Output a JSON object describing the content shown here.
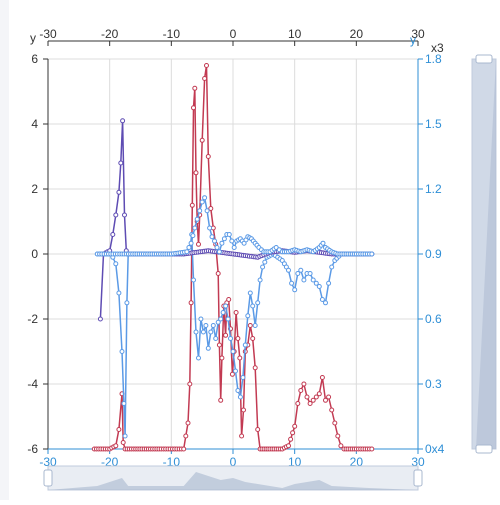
{
  "chart_data": {
    "type": "line",
    "x_range": [
      -30,
      30
    ],
    "x_ticks": [
      "-30",
      "-20",
      "-10",
      "0",
      "10",
      "20",
      "30"
    ],
    "y_left": {
      "name": "y",
      "range": [
        -6,
        6
      ],
      "ticks": [
        "-6",
        "-4",
        "-2",
        "0",
        "2",
        "4",
        "6"
      ]
    },
    "y_right": {
      "name": "y",
      "unit_label": "x3",
      "range": [
        0,
        1.8
      ],
      "ticks": [
        "0x4",
        "0.3",
        "0.6",
        "0.9",
        "1.2",
        "1.5",
        "1.8"
      ]
    },
    "grid": true,
    "colors": {
      "red_series": "#c23a52",
      "blue_series": "#5b9ae6",
      "purple_series": "#5e4cb3",
      "axis_right": "#2f8fd6",
      "axis_left": "#333333",
      "grid": "#dcdcdc",
      "zoom_bar": "#c0cbdc",
      "zoom_fill": "#a9b8cf"
    },
    "series": [
      {
        "axis": "left",
        "color_key": "red_series",
        "points": [
          [
            -22.5,
            -6
          ],
          [
            -20,
            -6
          ],
          [
            -19,
            -5.9
          ],
          [
            -18.5,
            -5.4
          ],
          [
            -18,
            -4.3
          ],
          [
            -17.8,
            -5.8
          ],
          [
            -17.5,
            -6
          ],
          [
            -12,
            -6
          ],
          [
            -8,
            -6
          ],
          [
            -7.3,
            -5.2
          ],
          [
            -7,
            -4
          ],
          [
            -6.8,
            -1.5
          ],
          [
            -6.6,
            1.5
          ],
          [
            -6.4,
            4.5
          ],
          [
            -6.2,
            5.1
          ],
          [
            -6.0,
            2.5
          ],
          [
            -5.8,
            1.0
          ],
          [
            -5.6,
            0.3
          ],
          [
            -5.4,
            1.2
          ],
          [
            -5.0,
            3.5
          ],
          [
            -4.6,
            5.4
          ],
          [
            -4.3,
            5.8
          ],
          [
            -4.0,
            3.0
          ],
          [
            -3.6,
            1.4
          ],
          [
            -3.2,
            0.8
          ],
          [
            -2.8,
            0.3
          ],
          [
            -2.4,
            -0.6
          ],
          [
            -2.2,
            -2.8
          ],
          [
            -2.0,
            -4.5
          ],
          [
            -1.8,
            -3.2
          ],
          [
            -1.5,
            -1.6
          ],
          [
            -1.2,
            -2.5
          ],
          [
            -1.0,
            -1.5
          ],
          [
            -0.7,
            -1.4
          ],
          [
            -0.4,
            -2.3
          ],
          [
            -0.1,
            -3.7
          ],
          [
            0.2,
            -3.0
          ],
          [
            0.5,
            -1.8
          ],
          [
            0.8,
            -2.6
          ],
          [
            1.1,
            -3.2
          ],
          [
            1.4,
            -5.6
          ],
          [
            1.7,
            -4.8
          ],
          [
            2.0,
            -3.0
          ],
          [
            2.4,
            -2.8
          ],
          [
            2.8,
            -2.2
          ],
          [
            3.2,
            -2.6
          ],
          [
            3.6,
            -3.5
          ],
          [
            4.0,
            -5.4
          ],
          [
            4.4,
            -6
          ],
          [
            6,
            -6
          ],
          [
            8,
            -6
          ],
          [
            9,
            -5.9
          ],
          [
            10,
            -5.3
          ],
          [
            10.5,
            -4.6
          ],
          [
            11,
            -4.2
          ],
          [
            11.5,
            -4.0
          ],
          [
            12,
            -4.4
          ],
          [
            12.5,
            -4.6
          ],
          [
            13,
            -4.5
          ],
          [
            13.5,
            -4.4
          ],
          [
            14,
            -4.3
          ],
          [
            14.5,
            -3.8
          ],
          [
            15,
            -4.5
          ],
          [
            15.5,
            -4.4
          ],
          [
            16,
            -4.8
          ],
          [
            16.5,
            -5.2
          ],
          [
            17,
            -5.6
          ],
          [
            17.5,
            -5.9
          ],
          [
            18,
            -6
          ],
          [
            20,
            -6
          ],
          [
            22.5,
            -6
          ]
        ]
      },
      {
        "axis": "left",
        "color_key": "blue_series",
        "points": [
          [
            -22,
            0
          ],
          [
            -20,
            0
          ],
          [
            -19.5,
            -0.1
          ],
          [
            -19,
            -0.3
          ],
          [
            -18.5,
            -1.2
          ],
          [
            -18,
            -3.0
          ],
          [
            -17.7,
            -4.6
          ],
          [
            -17.5,
            -5.6
          ],
          [
            -17.2,
            -1.5
          ],
          [
            -17,
            0
          ],
          [
            -12,
            0
          ],
          [
            -8,
            0
          ],
          [
            -7,
            0.1
          ],
          [
            -6.7,
            0.6
          ],
          [
            -6.4,
            -0.8
          ],
          [
            -6.0,
            -2.4
          ],
          [
            -5.6,
            -3.2
          ],
          [
            -5.2,
            -2.0
          ],
          [
            -4.8,
            -2.4
          ],
          [
            -4.4,
            -2.2
          ],
          [
            -4.0,
            -2.9
          ],
          [
            -3.6,
            -2.4
          ],
          [
            -3.2,
            -2.2
          ],
          [
            -2.8,
            -2.6
          ],
          [
            -2.4,
            -2.1
          ],
          [
            -2.0,
            -2.0
          ],
          [
            -1.6,
            -1.8
          ],
          [
            -1.2,
            -1.6
          ],
          [
            -0.8,
            -2.0
          ],
          [
            -0.4,
            -2.6
          ],
          [
            0,
            -3.0
          ],
          [
            0.4,
            -3.6
          ],
          [
            0.8,
            -4.2
          ],
          [
            1.2,
            -4.4
          ],
          [
            1.6,
            -3.8
          ],
          [
            2.0,
            -2.8
          ],
          [
            2.4,
            -1.9
          ],
          [
            2.8,
            -1.2
          ],
          [
            3.2,
            -1.6
          ],
          [
            3.6,
            -2.2
          ],
          [
            4.0,
            -1.5
          ],
          [
            4.4,
            -0.8
          ],
          [
            4.8,
            -0.4
          ],
          [
            5.5,
            -0.1
          ],
          [
            6.5,
            0
          ],
          [
            8,
            -0.2
          ],
          [
            9,
            -0.5
          ],
          [
            9.5,
            -0.9
          ],
          [
            10,
            -1.1
          ],
          [
            10.5,
            -0.6
          ],
          [
            11,
            -0.5
          ],
          [
            11.5,
            -0.8
          ],
          [
            12,
            -0.6
          ],
          [
            12.5,
            -0.6
          ],
          [
            13,
            -0.8
          ],
          [
            13.5,
            -0.9
          ],
          [
            14,
            -1.0
          ],
          [
            14.5,
            -1.4
          ],
          [
            15,
            -1.5
          ],
          [
            15.5,
            -0.9
          ],
          [
            16,
            -0.4
          ],
          [
            16.5,
            -0.2
          ],
          [
            17.5,
            0
          ],
          [
            20,
            0
          ],
          [
            22.5,
            0
          ]
        ]
      },
      {
        "axis": "left",
        "color_key": "purple_series",
        "points": [
          [
            -21.5,
            -2.0
          ],
          [
            -21,
            0
          ],
          [
            -20,
            0.1
          ],
          [
            -19.5,
            0.6
          ],
          [
            -19,
            1.2
          ],
          [
            -18.5,
            1.9
          ],
          [
            -18.2,
            2.8
          ],
          [
            -17.9,
            4.1
          ],
          [
            -17.6,
            1.2
          ],
          [
            -17.3,
            0.1
          ],
          [
            -17,
            0
          ],
          [
            -12,
            0
          ],
          [
            -8,
            0
          ],
          [
            -6,
            0.05
          ],
          [
            -4,
            0.1
          ],
          [
            -2,
            0.05
          ],
          [
            0,
            0
          ],
          [
            2,
            -0.05
          ],
          [
            4,
            -0.1
          ],
          [
            6,
            0.05
          ],
          [
            8,
            0.1
          ],
          [
            10,
            0.05
          ],
          [
            12,
            0.1
          ],
          [
            14,
            0.05
          ],
          [
            16,
            0
          ],
          [
            18,
            0
          ],
          [
            22.5,
            0
          ]
        ]
      },
      {
        "axis": "right",
        "color_key": "blue_series",
        "points": [
          [
            -22,
            0.9
          ],
          [
            -18,
            0.9
          ],
          [
            -10,
            0.9
          ],
          [
            -7.5,
            0.91
          ],
          [
            -6.8,
            0.95
          ],
          [
            -6.2,
            1.02
          ],
          [
            -5.8,
            1.06
          ],
          [
            -5.4,
            1.1
          ],
          [
            -5.0,
            1.14
          ],
          [
            -4.6,
            1.16
          ],
          [
            -4.2,
            1.1
          ],
          [
            -3.8,
            1.02
          ],
          [
            -3.4,
            0.98
          ],
          [
            -3.0,
            0.96
          ],
          [
            -2.6,
            0.93
          ],
          [
            -2.2,
            0.91
          ],
          [
            -1.8,
            0.95
          ],
          [
            -1.4,
            0.97
          ],
          [
            -1.0,
            0.99
          ],
          [
            -0.6,
            0.99
          ],
          [
            -0.2,
            0.96
          ],
          [
            0.2,
            0.93
          ],
          [
            0.6,
            0.96
          ],
          [
            1.2,
            0.97
          ],
          [
            1.8,
            0.95
          ],
          [
            2.4,
            0.98
          ],
          [
            3.0,
            0.97
          ],
          [
            3.6,
            0.95
          ],
          [
            4.2,
            0.93
          ],
          [
            5,
            0.91
          ],
          [
            6,
            0.91
          ],
          [
            7,
            0.93
          ],
          [
            7.5,
            0.92
          ],
          [
            8,
            0.91
          ],
          [
            9,
            0.91
          ],
          [
            10,
            0.92
          ],
          [
            11,
            0.91
          ],
          [
            12,
            0.92
          ],
          [
            13,
            0.91
          ],
          [
            14,
            0.93
          ],
          [
            14.6,
            0.95
          ],
          [
            15,
            0.93
          ],
          [
            16,
            0.91
          ],
          [
            17,
            0.9
          ],
          [
            20,
            0.9
          ],
          [
            22.5,
            0.9
          ]
        ]
      }
    ]
  },
  "zoom_slider": {
    "range_start": -30,
    "range_end": 30
  }
}
